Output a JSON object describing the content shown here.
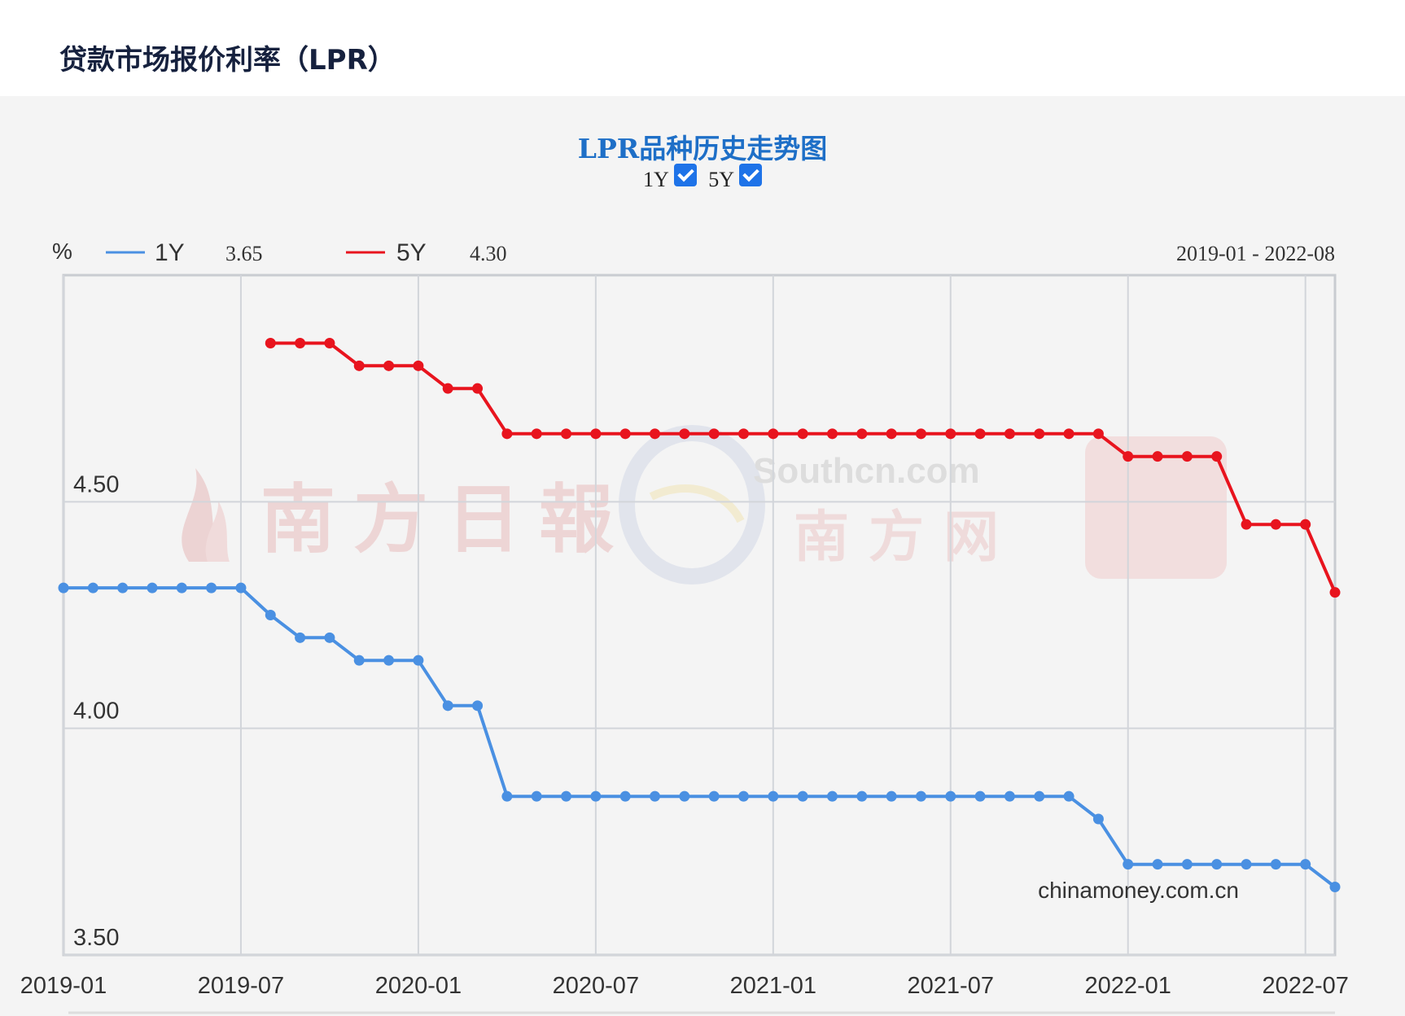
{
  "page": {
    "title": "贷款市场报价利率（LPR）"
  },
  "chart_header": {
    "title": "LPR品种历史走势图",
    "toggles": [
      {
        "label": "1Y",
        "checked": true
      },
      {
        "label": "5Y",
        "checked": true
      }
    ]
  },
  "legend": {
    "unit": "%",
    "items": [
      {
        "name": "1Y",
        "latest": "3.65",
        "color": "#4a90e2"
      },
      {
        "name": "5Y",
        "latest": "4.30",
        "color": "#e8141e"
      }
    ],
    "range": "2019-01 - 2022-08"
  },
  "watermarks": {
    "left": "南方日報",
    "middle_en": "Southcn.com",
    "middle_cn": "南方网",
    "source": "chinamoney.com.cn"
  },
  "chart_data": {
    "type": "line",
    "x_labels": [
      "2019-01",
      "2019-07",
      "2020-01",
      "2020-07",
      "2021-01",
      "2021-07",
      "2022-01",
      "2022-07"
    ],
    "y_ticks": [
      "3.50",
      "4.00",
      "4.50"
    ],
    "ylim": [
      3.5,
      5.0
    ],
    "xlim": [
      "2019-01",
      "2022-08"
    ],
    "grid": true,
    "series": [
      {
        "name": "1Y",
        "color": "#4a90e2",
        "x": [
          "2019-01",
          "2019-02",
          "2019-03",
          "2019-04",
          "2019-05",
          "2019-06",
          "2019-07",
          "2019-08",
          "2019-09",
          "2019-10",
          "2019-11",
          "2019-12",
          "2020-01",
          "2020-02",
          "2020-03",
          "2020-04",
          "2020-05",
          "2020-06",
          "2020-07",
          "2020-08",
          "2020-09",
          "2020-10",
          "2020-11",
          "2020-12",
          "2021-01",
          "2021-02",
          "2021-03",
          "2021-04",
          "2021-05",
          "2021-06",
          "2021-07",
          "2021-08",
          "2021-09",
          "2021-10",
          "2021-11",
          "2021-12",
          "2022-01",
          "2022-02",
          "2022-03",
          "2022-04",
          "2022-05",
          "2022-06",
          "2022-07",
          "2022-08"
        ],
        "values": [
          4.31,
          4.31,
          4.31,
          4.31,
          4.31,
          4.31,
          4.31,
          4.25,
          4.2,
          4.2,
          4.15,
          4.15,
          4.15,
          4.05,
          4.05,
          3.85,
          3.85,
          3.85,
          3.85,
          3.85,
          3.85,
          3.85,
          3.85,
          3.85,
          3.85,
          3.85,
          3.85,
          3.85,
          3.85,
          3.85,
          3.85,
          3.85,
          3.85,
          3.85,
          3.85,
          3.8,
          3.7,
          3.7,
          3.7,
          3.7,
          3.7,
          3.7,
          3.7,
          3.65
        ]
      },
      {
        "name": "5Y",
        "color": "#e8141e",
        "x": [
          "2019-08",
          "2019-09",
          "2019-10",
          "2019-11",
          "2019-12",
          "2020-01",
          "2020-02",
          "2020-03",
          "2020-04",
          "2020-05",
          "2020-06",
          "2020-07",
          "2020-08",
          "2020-09",
          "2020-10",
          "2020-11",
          "2020-12",
          "2021-01",
          "2021-02",
          "2021-03",
          "2021-04",
          "2021-05",
          "2021-06",
          "2021-07",
          "2021-08",
          "2021-09",
          "2021-10",
          "2021-11",
          "2021-12",
          "2022-01",
          "2022-02",
          "2022-03",
          "2022-04",
          "2022-05",
          "2022-06",
          "2022-07",
          "2022-08"
        ],
        "values": [
          4.85,
          4.85,
          4.85,
          4.8,
          4.8,
          4.8,
          4.75,
          4.75,
          4.65,
          4.65,
          4.65,
          4.65,
          4.65,
          4.65,
          4.65,
          4.65,
          4.65,
          4.65,
          4.65,
          4.65,
          4.65,
          4.65,
          4.65,
          4.65,
          4.65,
          4.65,
          4.65,
          4.65,
          4.65,
          4.6,
          4.6,
          4.6,
          4.6,
          4.45,
          4.45,
          4.45,
          4.3
        ]
      }
    ]
  }
}
